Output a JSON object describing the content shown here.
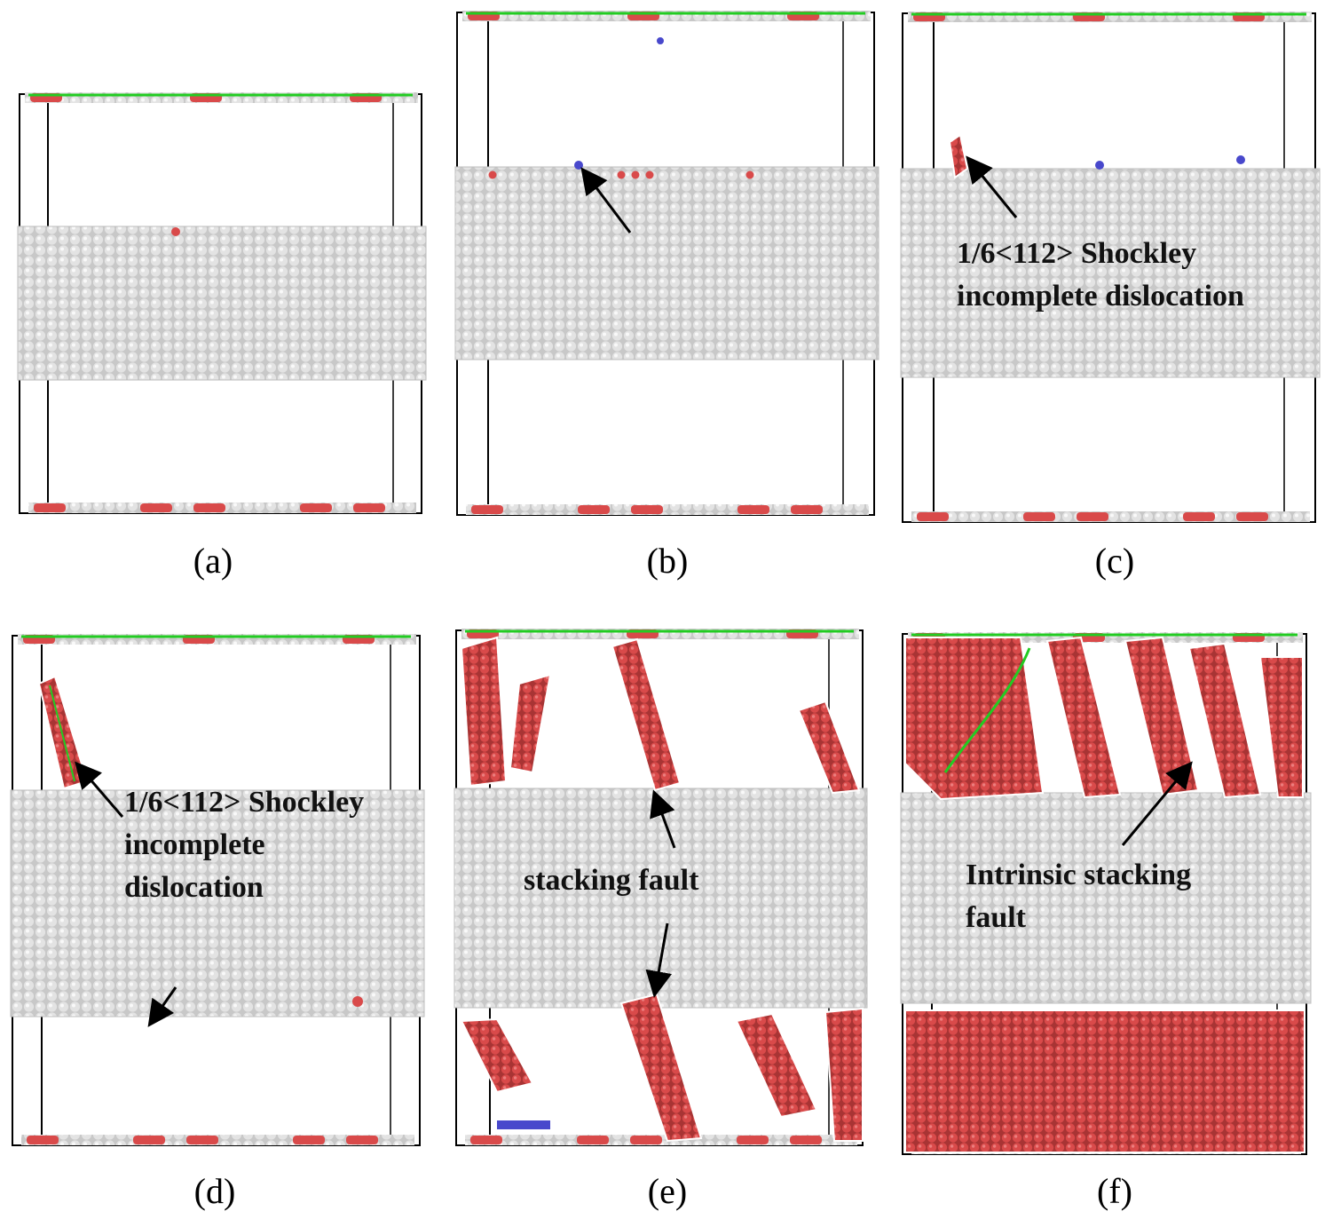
{
  "colors": {
    "atom_fcc": "#d9d9d9",
    "atom_hcp": "#d94a4a",
    "atom_bcc": "#4848cc",
    "atom_other": "#e8e8e8",
    "dislocation_line": "#22cc22",
    "box_edge": "#000000",
    "arrow": "#000000"
  },
  "panels": [
    {
      "id": "a",
      "caption": "(a)",
      "annotation": []
    },
    {
      "id": "b",
      "caption": "(b)",
      "annotation": []
    },
    {
      "id": "c",
      "caption": "(c)",
      "annotation": [
        "1/6<112> Shockley",
        "incomplete dislocation"
      ]
    },
    {
      "id": "d",
      "caption": "(d)",
      "annotation": [
        "1/6<112> Shockley",
        "incomplete",
        "dislocation"
      ]
    },
    {
      "id": "e",
      "caption": "(e)",
      "annotation": [
        "stacking fault"
      ]
    },
    {
      "id": "f",
      "caption": "(f)",
      "annotation": [
        "Intrinsic stacking",
        "fault"
      ]
    }
  ]
}
